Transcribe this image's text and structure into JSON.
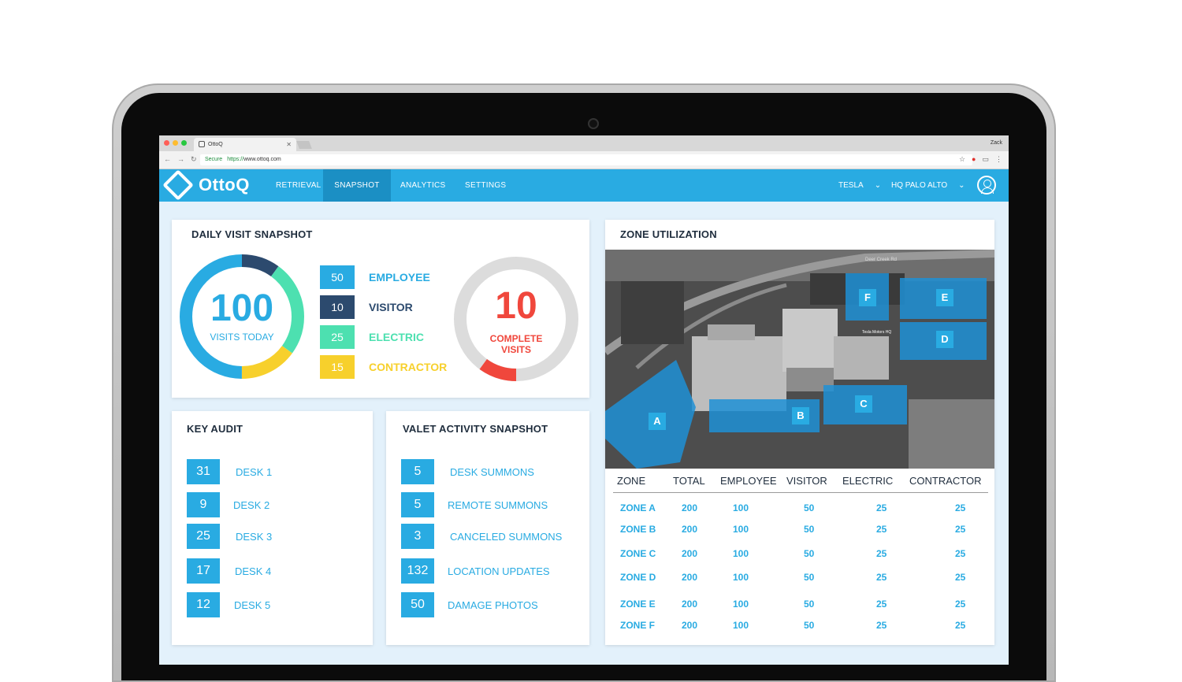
{
  "browser": {
    "tab_title": "OttoQ",
    "user": "Zack",
    "secure_label": "Secure",
    "url_proto": "https://",
    "url_host": "www.ottoq.com"
  },
  "app": {
    "logo_text": "OttoQ",
    "nav": [
      "RETRIEVAL",
      "SNAPSHOT",
      "ANALYTICS",
      "SETTINGS"
    ],
    "active_nav": "SNAPSHOT",
    "org": "TESLA",
    "location": "HQ PALO ALTO"
  },
  "daily_visit": {
    "title": "DAILY VISIT SNAPSHOT",
    "total": "100",
    "total_label": "VISITS TODAY",
    "legend": [
      {
        "value": "50",
        "label": "EMPLOYEE",
        "color": "#29abe2"
      },
      {
        "value": "10",
        "label": "VISITOR",
        "color": "#2c4a6e"
      },
      {
        "value": "25",
        "label": "ELECTRIC",
        "color": "#4de0b0"
      },
      {
        "value": "15",
        "label": "CONTRACTOR",
        "color": "#f7d02c"
      }
    ],
    "complete_value": "10",
    "complete_label_1": "COMPLETE",
    "complete_label_2": "VISITS",
    "complete_color": "#f0473c",
    "complete_fraction": 0.1
  },
  "key_audit": {
    "title": "KEY AUDIT",
    "rows": [
      {
        "value": "31",
        "label": "DESK 1"
      },
      {
        "value": "9",
        "label": "DESK 2"
      },
      {
        "value": "25",
        "label": "DESK 3"
      },
      {
        "value": "17",
        "label": "DESK 4"
      },
      {
        "value": "12",
        "label": "DESK 5"
      }
    ]
  },
  "valet": {
    "title": "VALET ACTIVITY SNAPSHOT",
    "rows": [
      {
        "value": "5",
        "label": "DESK SUMMONS"
      },
      {
        "value": "5",
        "label": "REMOTE SUMMONS"
      },
      {
        "value": "3",
        "label": "CANCELED SUMMONS"
      },
      {
        "value": "132",
        "label": "LOCATION UPDATES"
      },
      {
        "value": "50",
        "label": "DAMAGE PHOTOS"
      }
    ]
  },
  "zone_util": {
    "title": "ZONE UTILIZATION",
    "map_zones": [
      "A",
      "B",
      "C",
      "D",
      "E",
      "F"
    ],
    "map_labels": [
      "Deer Creek Rd",
      "Tesla Motors HQ"
    ],
    "columns": [
      "ZONE",
      "TOTAL",
      "EMPLOYEE",
      "VISITOR",
      "ELECTRIC",
      "CONTRACTOR"
    ],
    "rows": [
      [
        "ZONE A",
        "200",
        "100",
        "50",
        "25",
        "25"
      ],
      [
        "ZONE B",
        "200",
        "100",
        "50",
        "25",
        "25"
      ],
      [
        "ZONE C",
        "200",
        "100",
        "50",
        "25",
        "25"
      ],
      [
        "ZONE D",
        "200",
        "100",
        "50",
        "25",
        "25"
      ],
      [
        "ZONE E",
        "200",
        "100",
        "50",
        "25",
        "25"
      ],
      [
        "ZONE F",
        "200",
        "100",
        "50",
        "25",
        "25"
      ]
    ]
  }
}
